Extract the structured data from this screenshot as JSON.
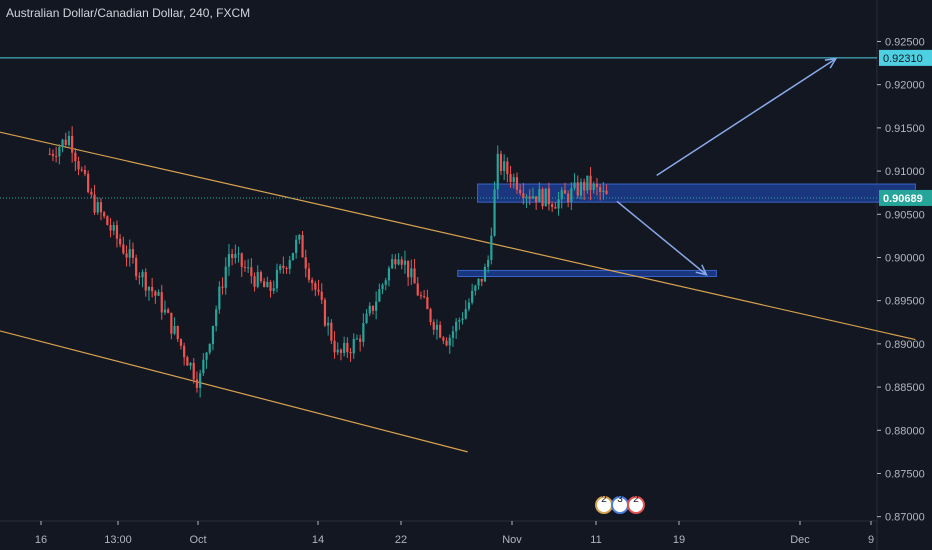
{
  "chart_data": {
    "type": "candlestick",
    "title": "Australian Dollar/Canadian Dollar, 240, FXCM",
    "x_tick_labels": [
      "16",
      "13:00",
      "Oct",
      "14",
      "22",
      "Nov",
      "11",
      "19",
      "Dec",
      "9"
    ],
    "y_ticks": [
      0.925,
      0.92,
      0.915,
      0.91,
      0.905,
      0.9,
      0.895,
      0.89,
      0.885,
      0.88,
      0.875,
      0.87
    ],
    "y_tick_labels": [
      "0.92500",
      "0.92000",
      "0.91500",
      "0.91000",
      "0.90500",
      "0.90000",
      "0.89500",
      "0.89000",
      "0.88500",
      "0.88000",
      "0.87500",
      "0.87000"
    ],
    "ylim": [
      0.8695,
      0.9298
    ],
    "price_level_line": {
      "value": 0.9231,
      "label": "0.92310",
      "color": "#4dd0e1"
    },
    "current_price": {
      "value": 0.90689,
      "label": "0.90689",
      "color": "#26a69a"
    },
    "key_points": [
      {
        "date": "Sep 16",
        "close": 0.912
      },
      {
        "date": "Sep 18",
        "close": 0.914
      },
      {
        "date": "Sep 20",
        "close": 0.907
      },
      {
        "date": "Sep 24",
        "close": 0.9
      },
      {
        "date": "Sep 27",
        "close": 0.895
      },
      {
        "date": "Oct 1",
        "close": 0.8855
      },
      {
        "date": "Oct 4",
        "close": 0.9005
      },
      {
        "date": "Oct 8",
        "close": 0.896
      },
      {
        "date": "Oct 11",
        "close": 0.902
      },
      {
        "date": "Oct 15",
        "close": 0.8885
      },
      {
        "date": "Oct 17",
        "close": 0.8905
      },
      {
        "date": "Oct 21",
        "close": 0.901
      },
      {
        "date": "Oct 24",
        "close": 0.8935
      },
      {
        "date": "Oct 26",
        "close": 0.8905
      },
      {
        "date": "Oct 28",
        "close": 0.8945
      },
      {
        "date": "Oct 30",
        "close": 0.899
      },
      {
        "date": "Oct 31",
        "close": 0.911
      },
      {
        "date": "Nov 3",
        "close": 0.9075
      },
      {
        "date": "Nov 6",
        "close": 0.9065
      },
      {
        "date": "Nov 9",
        "close": 0.9085
      },
      {
        "date": "Nov 11",
        "close": 0.90689
      }
    ],
    "trend_lines": [
      {
        "from": {
          "date": "Sep 11",
          "price": 0.9145
        },
        "to": {
          "date": "Dec 12",
          "price": 0.8905
        },
        "color": "#d8a24f"
      },
      {
        "from": {
          "date": "Sep 11",
          "price": 0.8915
        },
        "to": {
          "date": "Oct 28",
          "price": 0.8775
        },
        "color": "#d8a24f"
      }
    ],
    "zones": [
      {
        "from_date": "Oct 29",
        "to_date": "Dec 12",
        "top": 0.9085,
        "bottom": 0.9064,
        "color": "#1c3c8e"
      },
      {
        "from_date": "Oct 27",
        "to_date": "Nov 22",
        "top": 0.8985,
        "bottom": 0.8978,
        "color": "#1c3c8e"
      }
    ],
    "arrows": [
      {
        "from": {
          "date": "Nov 16",
          "price": 0.9095
        },
        "to": {
          "date": "Dec 4",
          "price": 0.923
        },
        "color": "#8aa9e8"
      },
      {
        "from": {
          "date": "Nov 12",
          "price": 0.9065
        },
        "to": {
          "date": "Nov 21",
          "price": 0.898
        },
        "color": "#8aa9e8"
      }
    ],
    "event_badges": [
      "2",
      "3",
      "2"
    ],
    "colors": {
      "background": "#131722",
      "up": "#26a69a",
      "down": "#ef5350",
      "axis_text": "#b2b5be",
      "grid": "#2a2e39"
    }
  }
}
